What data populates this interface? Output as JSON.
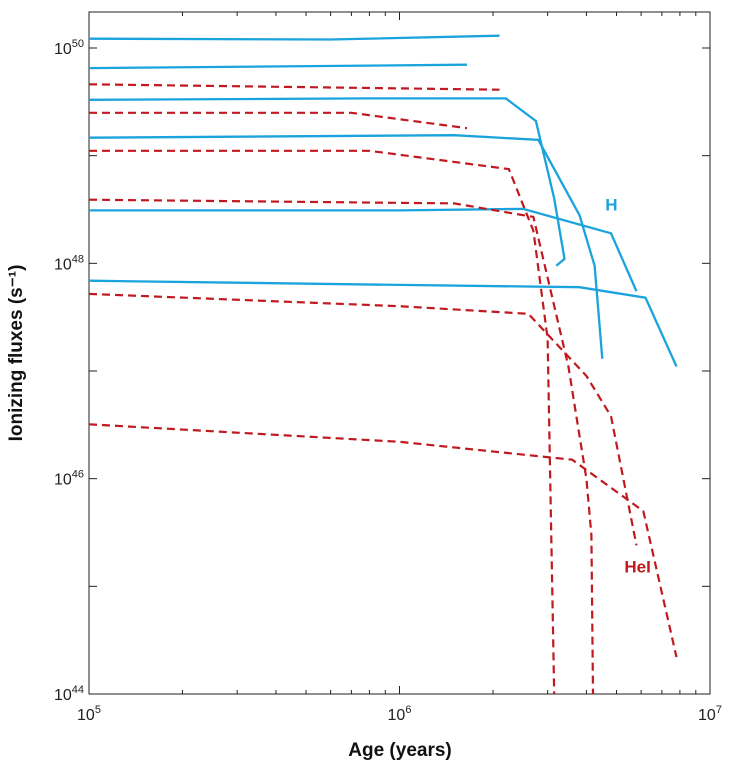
{
  "chart_data": {
    "type": "line",
    "title": "",
    "xlabel": "Age (years)",
    "ylabel": "Ionizing fluxes (s⁻¹)",
    "xscale": "log",
    "yscale": "log",
    "xlim": [
      100000,
      10000000
    ],
    "ylim": [
      1e+44,
      1e+50
    ],
    "colors": {
      "H": "#1aa3dc",
      "HeI": "#c0191f",
      "axis": "#222222"
    },
    "x_ticks": [
      {
        "value": 100000,
        "base": "10",
        "exp": "5"
      },
      {
        "value": 1000000,
        "base": "10",
        "exp": "6"
      },
      {
        "value": 10000000,
        "base": "10",
        "exp": "7"
      }
    ],
    "y_ticks": [
      {
        "value": 1e+44,
        "base": "10",
        "exp": "44"
      },
      {
        "value": 1e+46,
        "base": "10",
        "exp": "46"
      },
      {
        "value": 1e+48,
        "base": "10",
        "exp": "48"
      },
      {
        "value": 1e+50,
        "base": "10",
        "exp": "50"
      }
    ],
    "y_minor_ticks": [
      1e+45,
      1e+47,
      1e+49
    ],
    "annotations": [
      {
        "text": "H",
        "series": "H",
        "at": [
          4600000,
          3.1e+48
        ]
      },
      {
        "text": "HeI",
        "series": "HeI",
        "at": [
          5300000,
          1.35e+45
        ]
      }
    ],
    "series": [
      {
        "name": "H",
        "group": "H",
        "x": [
          100000,
          600000,
          2100000
        ],
        "y": [
          1.22e+50,
          1.2e+50,
          1.3e+50
        ]
      },
      {
        "name": "H",
        "group": "H",
        "x": [
          100000,
          1650000
        ],
        "y": [
          6.5e+49,
          7e+49
        ]
      },
      {
        "name": "H",
        "group": "H",
        "x": [
          100000,
          800000,
          2200000,
          2750000,
          3150000,
          3400000,
          3200000
        ],
        "y": [
          3.3e+49,
          3.4e+49,
          3.4e+49,
          2.1e+49,
          4e+48,
          1.1e+48,
          9.5e+47
        ]
      },
      {
        "name": "H",
        "group": "H",
        "x": [
          100000,
          1500000,
          2800000,
          3800000,
          4250000,
          4500000
        ],
        "y": [
          1.47e+49,
          1.55e+49,
          1.4e+49,
          2.8e+48,
          9.5e+47,
          1.3e+47
        ]
      },
      {
        "name": "H",
        "group": "H",
        "x": [
          100000,
          1000000,
          2500000,
          4800000,
          5800000
        ],
        "y": [
          3.1e+48,
          3.1e+48,
          3.2e+48,
          1.9e+48,
          5.5e+47
        ]
      },
      {
        "name": "H",
        "group": "H",
        "x": [
          100000,
          1000000,
          3800000,
          6200000,
          7800000
        ],
        "y": [
          6.9e+47,
          6.3e+47,
          6e+47,
          4.8e+47,
          1.1e+47
        ]
      },
      {
        "name": "HeI",
        "group": "HeI",
        "x": [
          100000,
          2100000
        ],
        "y": [
          4.6e+49,
          4.1e+49
        ]
      },
      {
        "name": "HeI",
        "group": "HeI",
        "x": [
          100000,
          700000,
          1650000
        ],
        "y": [
          2.5e+49,
          2.5e+49,
          1.8e+49
        ]
      },
      {
        "name": "HeI",
        "group": "HeI",
        "x": [
          100000,
          800000,
          2250000,
          2700000,
          3000000,
          3150000
        ],
        "y": [
          1.11e+49,
          1.11e+49,
          7.5e+48,
          2e+48,
          2e+47,
          1e+44
        ]
      },
      {
        "name": "HeI",
        "group": "HeI",
        "x": [
          100000,
          1500000,
          2700000,
          3500000,
          4000000,
          4150000,
          4200000
        ],
        "y": [
          3.9e+48,
          3.6e+48,
          2.7e+48,
          1.1e+47,
          1e+46,
          3e+45,
          1e+44
        ]
      },
      {
        "name": "HeI",
        "group": "HeI",
        "x": [
          100000,
          1000000,
          2600000,
          4000000,
          4800000,
          5800000
        ],
        "y": [
          5.2e+47,
          4e+47,
          3.4e+47,
          9e+46,
          3.8e+46,
          2.4e+45
        ]
      },
      {
        "name": "HeI",
        "group": "HeI",
        "x": [
          100000,
          1000000,
          3600000,
          6100000,
          7800000
        ],
        "y": [
          3.2e+46,
          2.2e+46,
          1.5e+46,
          5e+45,
          2.2e+44
        ]
      }
    ]
  }
}
